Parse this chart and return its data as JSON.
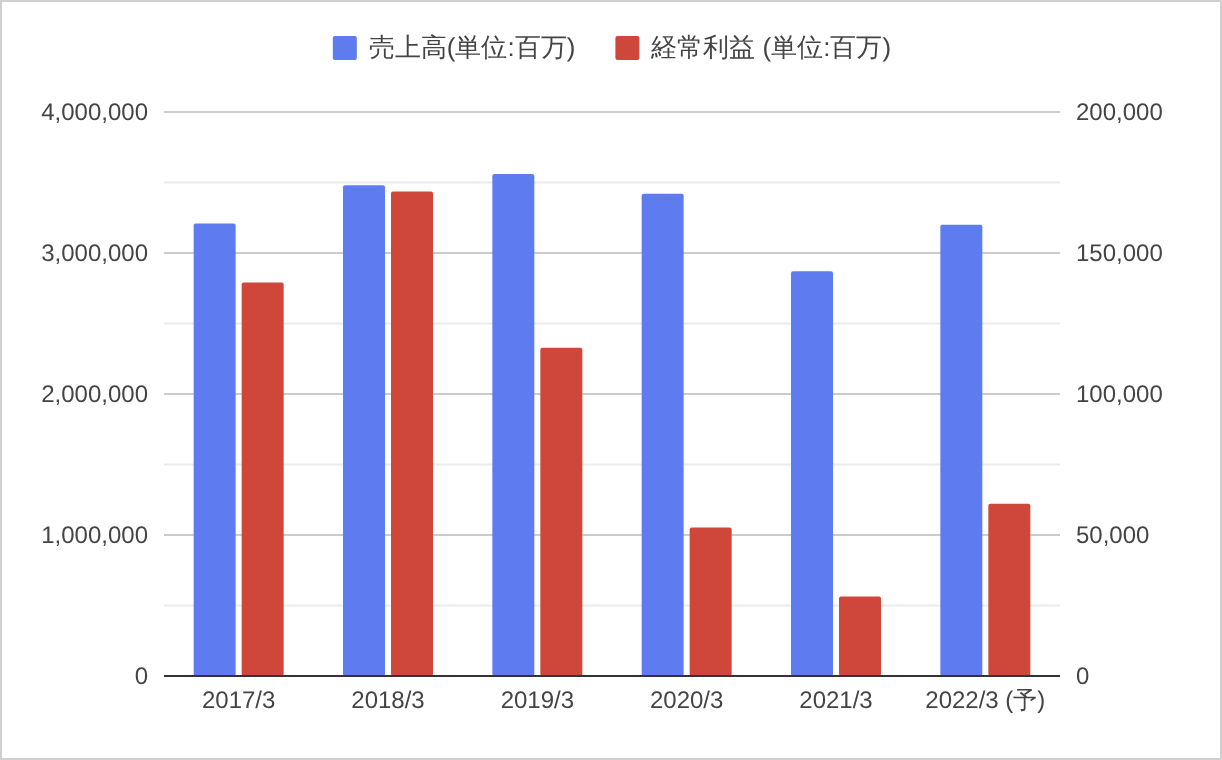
{
  "chart_data": {
    "type": "bar",
    "categories": [
      "2017/3",
      "2018/3",
      "2019/3",
      "2020/3",
      "2021/3",
      "2022/3 (予)"
    ],
    "series": [
      {
        "name": "売上高(単位:百万)",
        "color": "#5e7cef",
        "values": [
          3210000,
          3480000,
          3560000,
          3420000,
          2870000,
          3200000
        ]
      },
      {
        "name": "経常利益 (単位:百万)",
        "color": "#cf463b",
        "axis": "y2",
        "values": [
          139500,
          171800,
          116400,
          52700,
          28200,
          61100
        ]
      }
    ],
    "ylim": [
      0,
      4000000
    ],
    "yticks": [
      {
        "value": 0,
        "label": "0"
      },
      {
        "value": 500000,
        "label": null
      },
      {
        "value": 1000000,
        "label": "1,000,000"
      },
      {
        "value": 1500000,
        "label": null
      },
      {
        "value": 2000000,
        "label": "2,000,000"
      },
      {
        "value": 2500000,
        "label": null
      },
      {
        "value": 3000000,
        "label": "3,000,000"
      },
      {
        "value": 3500000,
        "label": null
      },
      {
        "value": 4000000,
        "label": "4,000,000"
      }
    ],
    "y2lim": [
      0,
      200000
    ],
    "y2ticks": [
      {
        "value": 0,
        "label": "0"
      },
      {
        "value": 50000,
        "label": "50,000"
      },
      {
        "value": 100000,
        "label": "100,000"
      },
      {
        "value": 150000,
        "label": "150,000"
      },
      {
        "value": 200000,
        "label": "200,000"
      }
    ],
    "grid": "y",
    "legend": "top"
  }
}
